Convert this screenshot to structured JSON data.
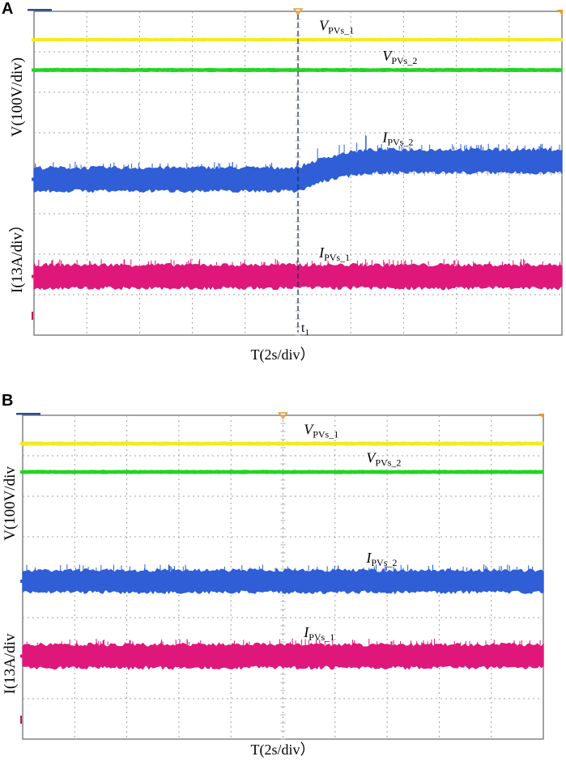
{
  "chart_data": [
    {
      "panel": "A",
      "type": "line",
      "title": "",
      "xlabel": "T(2s/div）",
      "ylabel_voltage": "V(100V/div)",
      "ylabel_current": "I(13A/div）",
      "x_range_div": [
        0,
        10
      ],
      "y_range_div": [
        0,
        8
      ],
      "grid": true,
      "marker": {
        "label": "t",
        "subscript": "1",
        "x_div": 5.0
      },
      "series": [
        {
          "name": "V",
          "subscript": "PVs_1",
          "color": "#f0ec1e",
          "level_div": 7.3,
          "band_div": 0.06,
          "label_x_div": 5.4
        },
        {
          "name": "V",
          "subscript": "PVs_2",
          "color": "#22d422",
          "level_div": 6.55,
          "band_div": 0.07,
          "label_x_div": 6.6
        },
        {
          "name": "I",
          "subscript": "PVs_2",
          "color": "#2f5ed6",
          "level_div_before": 3.85,
          "level_div_after": 4.3,
          "step_x_div": 5.0,
          "band_div": 0.55,
          "label_x_div": 6.6
        },
        {
          "name": "I",
          "subscript": "PVs_1",
          "color": "#e0177a",
          "level_div": 1.45,
          "band_div": 0.55,
          "label_x_div": 5.4
        }
      ]
    },
    {
      "panel": "B",
      "type": "line",
      "title": "",
      "xlabel": "T(2s/div）",
      "ylabel_voltage": "V(100V/div",
      "ylabel_current": "I(13A/div",
      "x_range_div": [
        0,
        10
      ],
      "y_range_div": [
        0,
        8
      ],
      "grid": true,
      "series": [
        {
          "name": "V",
          "subscript": "PVs_1",
          "color": "#f0ec1e",
          "level_div": 7.3,
          "band_div": 0.07,
          "label_x_div": 5.4
        },
        {
          "name": "V",
          "subscript": "PVs_2",
          "color": "#22d422",
          "level_div": 6.6,
          "band_div": 0.07,
          "label_x_div": 6.6
        },
        {
          "name": "I",
          "subscript": "PVs_2",
          "color": "#2f5ed6",
          "level_div": 3.9,
          "band_div": 0.52,
          "label_x_div": 6.6
        },
        {
          "name": "I",
          "subscript": "PVs_1",
          "color": "#e0177a",
          "level_div": 2.05,
          "band_div": 0.55,
          "label_x_div": 5.4
        }
      ]
    }
  ]
}
